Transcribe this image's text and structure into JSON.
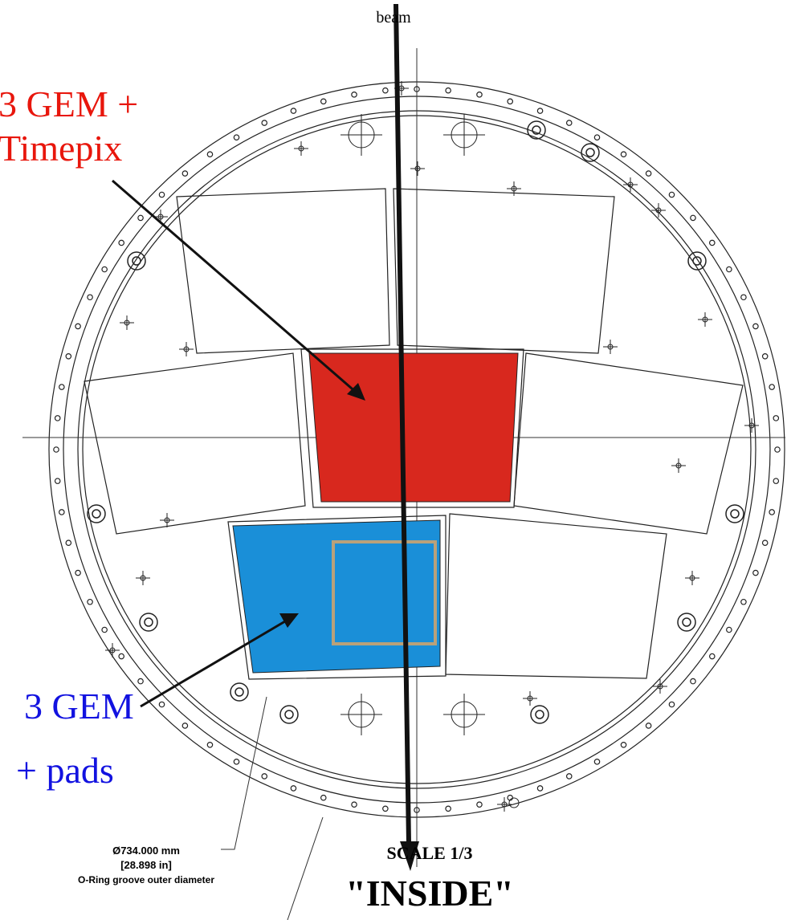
{
  "beam_label": "beam",
  "labels": {
    "red": [
      "3 GEM +",
      "Timepix"
    ],
    "blue": [
      "3 GEM",
      "+ pads"
    ]
  },
  "dimension": [
    "Ø734.000 mm",
    "[28.898 in]",
    "O-Ring groove outer diameter"
  ],
  "scale": "SCALE 1/3",
  "view": "\"INSIDE\""
}
